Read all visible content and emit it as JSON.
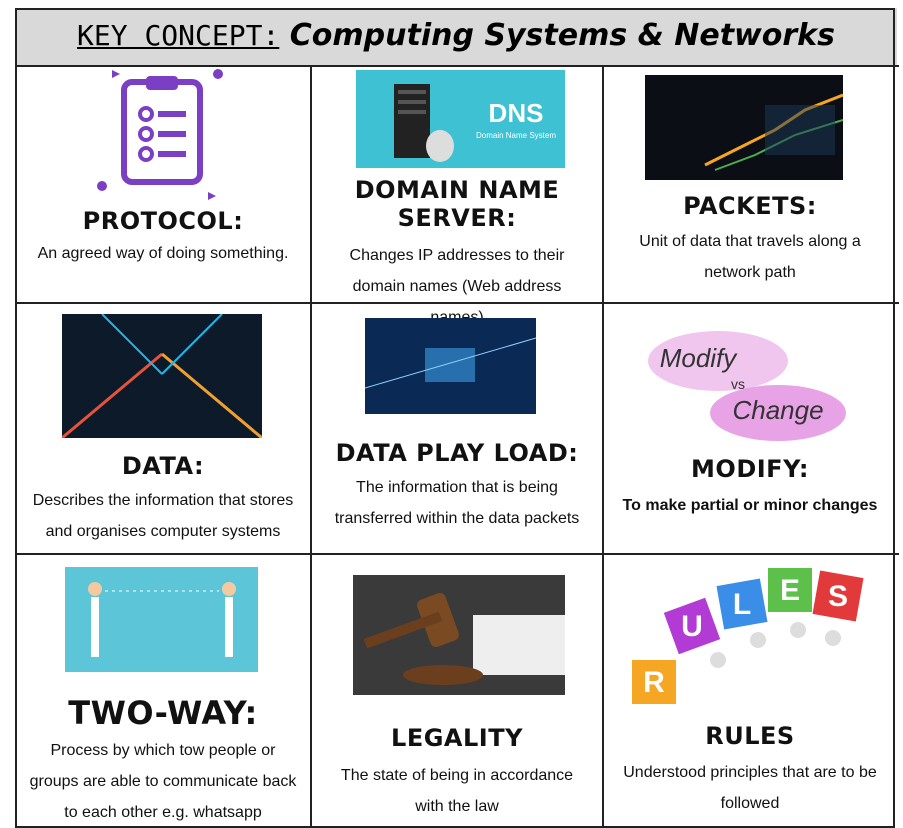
{
  "header": {
    "prefix": "KEY CONCEPT:",
    "title": "Computing Systems & Networks"
  },
  "cells": [
    {
      "term": "PROTOCOL:",
      "definition": "An agreed way of doing something."
    },
    {
      "term": "DOMAIN NAME SERVER:",
      "definition": "Changes IP addresses to their domain names (Web address names)",
      "image_text": [
        "DNS",
        "Domain Name System"
      ]
    },
    {
      "term": "PACKETS:",
      "definition": "Unit of data that travels along a network path"
    },
    {
      "term": "DATA:",
      "definition": "Describes the information that stores and organises computer systems"
    },
    {
      "term": "DATA PLAY LOAD:",
      "definition": "The information that is being transferred within the data packets"
    },
    {
      "term": "MODIFY:",
      "definition": "To make partial or minor changes",
      "image_text": [
        "Modify",
        "vs",
        "Change"
      ]
    },
    {
      "term": "TWO-WAY:",
      "definition": "Process by which tow people or groups are able to communicate back to each other e.g. whatsapp"
    },
    {
      "term": "LEGALITY",
      "definition": "The state of being in accordance with the law"
    },
    {
      "term": "RULES",
      "definition": "Understood principles that are to be followed",
      "image_text": [
        "R",
        "U",
        "L",
        "E",
        "S"
      ]
    }
  ]
}
